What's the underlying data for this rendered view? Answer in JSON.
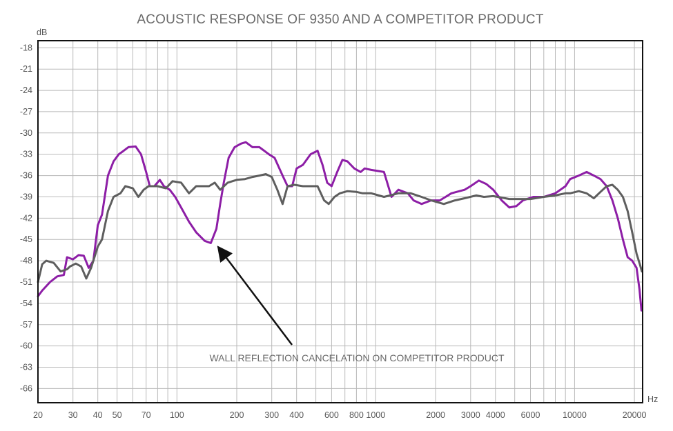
{
  "chart_data": {
    "type": "line",
    "title": "ACOUSTIC RESPONSE OF 9350 AND A COMPETITOR PRODUCT",
    "xlabel": "Hz",
    "ylabel": "dB",
    "x_scale": "log",
    "xlim": [
      20,
      22000
    ],
    "ylim": [
      -68,
      -17
    ],
    "grid": true,
    "x_ticks": [
      {
        "value": 20,
        "label": "20"
      },
      {
        "value": 30,
        "label": "30"
      },
      {
        "value": 40,
        "label": "40"
      },
      {
        "value": 50,
        "label": "50"
      },
      {
        "value": 70,
        "label": "70"
      },
      {
        "value": 100,
        "label": "100"
      },
      {
        "value": 200,
        "label": "200"
      },
      {
        "value": 300,
        "label": "300"
      },
      {
        "value": 400,
        "label": "400"
      },
      {
        "value": 600,
        "label": "600"
      },
      {
        "value": 800,
        "label": "800"
      },
      {
        "value": 1000,
        "label": "1000"
      },
      {
        "value": 2000,
        "label": "2000"
      },
      {
        "value": 3000,
        "label": "3000"
      },
      {
        "value": 4000,
        "label": "4000"
      },
      {
        "value": 6000,
        "label": "6000"
      },
      {
        "value": 10000,
        "label": "10000"
      },
      {
        "value": 20000,
        "label": "20000"
      }
    ],
    "x_minor_grid": [
      20,
      30,
      40,
      50,
      60,
      70,
      80,
      90,
      100,
      200,
      300,
      400,
      500,
      600,
      700,
      800,
      900,
      1000,
      2000,
      3000,
      4000,
      5000,
      6000,
      7000,
      8000,
      9000,
      10000,
      20000
    ],
    "y_ticks": [
      -18,
      -21,
      -24,
      -27,
      -30,
      -33,
      -36,
      -39,
      -42,
      -45,
      -48,
      -51,
      -54,
      -57,
      -60,
      -63,
      -66
    ],
    "series": [
      {
        "color": "#8d1ea6",
        "points": [
          [
            20,
            -53
          ],
          [
            21,
            -52.2
          ],
          [
            23,
            -51
          ],
          [
            25,
            -50.2
          ],
          [
            27,
            -50
          ],
          [
            28,
            -47.5
          ],
          [
            30,
            -47.8
          ],
          [
            32,
            -47.2
          ],
          [
            34,
            -47.3
          ],
          [
            36,
            -49
          ],
          [
            38,
            -48
          ],
          [
            40,
            -43
          ],
          [
            42,
            -41.5
          ],
          [
            45,
            -36
          ],
          [
            48,
            -34
          ],
          [
            51,
            -33
          ],
          [
            54,
            -32.5
          ],
          [
            57,
            -32
          ],
          [
            62,
            -31.9
          ],
          [
            66,
            -33
          ],
          [
            70,
            -35.5
          ],
          [
            73,
            -37.5
          ],
          [
            77,
            -37.5
          ],
          [
            82,
            -36.6
          ],
          [
            86,
            -37.5
          ],
          [
            92,
            -38
          ],
          [
            98,
            -39
          ],
          [
            105,
            -40.5
          ],
          [
            115,
            -42.5
          ],
          [
            125,
            -44
          ],
          [
            138,
            -45.2
          ],
          [
            148,
            -45.5
          ],
          [
            158,
            -43.5
          ],
          [
            165,
            -40
          ],
          [
            172,
            -37
          ],
          [
            182,
            -33.5
          ],
          [
            195,
            -32
          ],
          [
            210,
            -31.5
          ],
          [
            222,
            -31.3
          ],
          [
            240,
            -32
          ],
          [
            260,
            -32
          ],
          [
            290,
            -33
          ],
          [
            310,
            -33.5
          ],
          [
            340,
            -36
          ],
          [
            360,
            -37.5
          ],
          [
            380,
            -37.5
          ],
          [
            400,
            -35
          ],
          [
            430,
            -34.5
          ],
          [
            470,
            -33
          ],
          [
            510,
            -32.5
          ],
          [
            540,
            -34.5
          ],
          [
            570,
            -37
          ],
          [
            600,
            -37.5
          ],
          [
            640,
            -35.5
          ],
          [
            680,
            -33.8
          ],
          [
            720,
            -34
          ],
          [
            780,
            -35
          ],
          [
            840,
            -35.5
          ],
          [
            880,
            -35
          ],
          [
            950,
            -35.2
          ],
          [
            1100,
            -35.5
          ],
          [
            1200,
            -39
          ],
          [
            1300,
            -38
          ],
          [
            1450,
            -38.5
          ],
          [
            1550,
            -39.5
          ],
          [
            1700,
            -40
          ],
          [
            1900,
            -39.5
          ],
          [
            2100,
            -39.5
          ],
          [
            2400,
            -38.5
          ],
          [
            2800,
            -38
          ],
          [
            3000,
            -37.5
          ],
          [
            3300,
            -36.7
          ],
          [
            3600,
            -37.2
          ],
          [
            3900,
            -38
          ],
          [
            4300,
            -39.5
          ],
          [
            4700,
            -40.5
          ],
          [
            5100,
            -40.3
          ],
          [
            5500,
            -39.5
          ],
          [
            6200,
            -39
          ],
          [
            7000,
            -39
          ],
          [
            8000,
            -38.5
          ],
          [
            9000,
            -37.5
          ],
          [
            9500,
            -36.5
          ],
          [
            10500,
            -36
          ],
          [
            11500,
            -35.5
          ],
          [
            12500,
            -36
          ],
          [
            13500,
            -36.5
          ],
          [
            14500,
            -37.5
          ],
          [
            15500,
            -39.5
          ],
          [
            16500,
            -42
          ],
          [
            17500,
            -45
          ],
          [
            18500,
            -47.5
          ],
          [
            19500,
            -48
          ],
          [
            20500,
            -49
          ],
          [
            21200,
            -52
          ],
          [
            21700,
            -55
          ]
        ]
      },
      {
        "color": "#5e5e5e",
        "points": [
          [
            20,
            -51
          ],
          [
            21,
            -48.5
          ],
          [
            22,
            -48
          ],
          [
            24,
            -48.3
          ],
          [
            26,
            -49.5
          ],
          [
            28,
            -49.2
          ],
          [
            29,
            -48.8
          ],
          [
            31,
            -48.4
          ],
          [
            33,
            -48.8
          ],
          [
            35,
            -50.5
          ],
          [
            37,
            -49
          ],
          [
            40,
            -46
          ],
          [
            42,
            -45
          ],
          [
            45,
            -41
          ],
          [
            48,
            -39
          ],
          [
            52,
            -38.5
          ],
          [
            55,
            -37.5
          ],
          [
            60,
            -37.8
          ],
          [
            64,
            -39
          ],
          [
            68,
            -38
          ],
          [
            72,
            -37.5
          ],
          [
            80,
            -37.5
          ],
          [
            88,
            -37.8
          ],
          [
            95,
            -36.8
          ],
          [
            105,
            -37
          ],
          [
            115,
            -38.5
          ],
          [
            125,
            -37.5
          ],
          [
            135,
            -37.5
          ],
          [
            145,
            -37.5
          ],
          [
            155,
            -37
          ],
          [
            165,
            -38
          ],
          [
            180,
            -37
          ],
          [
            200,
            -36.6
          ],
          [
            220,
            -36.5
          ],
          [
            240,
            -36.2
          ],
          [
            260,
            -36
          ],
          [
            280,
            -35.8
          ],
          [
            300,
            -36.2
          ],
          [
            320,
            -38
          ],
          [
            340,
            -40
          ],
          [
            360,
            -37.5
          ],
          [
            390,
            -37.3
          ],
          [
            430,
            -37.5
          ],
          [
            470,
            -37.5
          ],
          [
            510,
            -37.5
          ],
          [
            550,
            -39.5
          ],
          [
            580,
            -40
          ],
          [
            620,
            -39
          ],
          [
            660,
            -38.5
          ],
          [
            720,
            -38.2
          ],
          [
            800,
            -38.3
          ],
          [
            860,
            -38.5
          ],
          [
            950,
            -38.5
          ],
          [
            1100,
            -39
          ],
          [
            1300,
            -38.5
          ],
          [
            1500,
            -38.5
          ],
          [
            1700,
            -39
          ],
          [
            1900,
            -39.5
          ],
          [
            2200,
            -40
          ],
          [
            2500,
            -39.5
          ],
          [
            2800,
            -39.2
          ],
          [
            3200,
            -38.8
          ],
          [
            3500,
            -39
          ],
          [
            3900,
            -38.9
          ],
          [
            4300,
            -39.1
          ],
          [
            4700,
            -39.3
          ],
          [
            5200,
            -39.3
          ],
          [
            6000,
            -39.3
          ],
          [
            7000,
            -39
          ],
          [
            8000,
            -38.8
          ],
          [
            9000,
            -38.5
          ],
          [
            9500,
            -38.5
          ],
          [
            10500,
            -38.2
          ],
          [
            11500,
            -38.5
          ],
          [
            12500,
            -39.2
          ],
          [
            13500,
            -38.3
          ],
          [
            14500,
            -37.5
          ],
          [
            15500,
            -37.3
          ],
          [
            16500,
            -38
          ],
          [
            17500,
            -39
          ],
          [
            18500,
            -41
          ],
          [
            19500,
            -44
          ],
          [
            20500,
            -47
          ],
          [
            21300,
            -48.5
          ],
          [
            21800,
            -49.5
          ]
        ]
      }
    ],
    "annotation": {
      "text": "WALL REFLECTION CANCELATION ON COMPETITOR PRODUCT",
      "target_hz": 150,
      "target_db": -45.5
    }
  }
}
